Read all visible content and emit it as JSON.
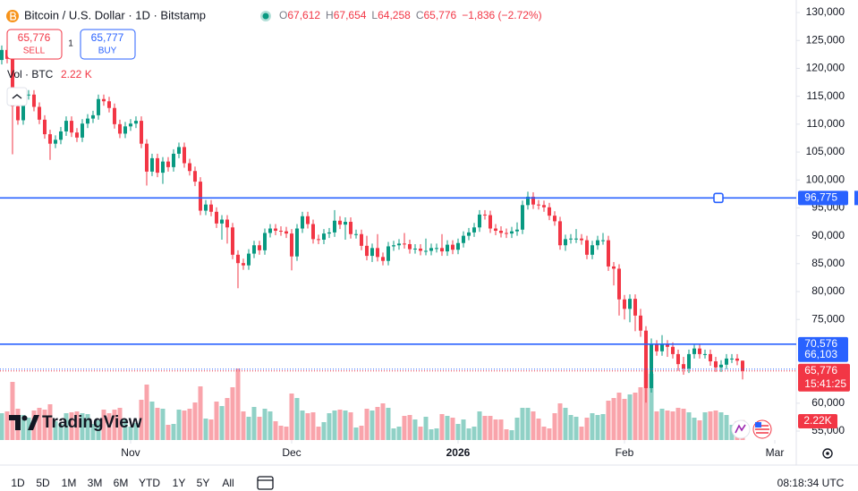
{
  "header": {
    "symbol": "Bitcoin / U.S. Dollar · 1D · Bitstamp",
    "ohlc": [
      {
        "key": "O",
        "value": "67,612"
      },
      {
        "key": "H",
        "value": "67,654"
      },
      {
        "key": "L",
        "value": "64,258"
      },
      {
        "key": "C",
        "value": "65,776"
      }
    ],
    "change": "−1,836 (−2.72%)"
  },
  "trade": {
    "sell_price": "65,776",
    "sell_label": "SELL",
    "quantity": "1",
    "buy_price": "65,777",
    "buy_label": "BUY"
  },
  "volume_legend": {
    "label": "Vol · BTC",
    "value": "2.22 K"
  },
  "branding": "TradingView",
  "footer": {
    "ranges": [
      "1D",
      "5D",
      "1M",
      "3M",
      "6M",
      "YTD",
      "1Y",
      "5Y",
      "All"
    ],
    "clock": "08:18:34 UTC"
  },
  "chart_data": {
    "type": "candlestick",
    "up_color": "#089981",
    "down_color": "#f23645",
    "open": [
      121500,
      123300,
      121700,
      113200,
      110700,
      115200,
      115300,
      113100,
      110800,
      108200,
      106500,
      107200,
      108700,
      110600,
      108500,
      107600,
      110100,
      111000,
      111600,
      114500,
      114100,
      112900,
      110000,
      108300,
      109600,
      110100,
      110600,
      106500,
      101500,
      103900,
      101300,
      103300,
      102300,
      104700,
      105900,
      103000,
      101600,
      99700,
      94500,
      95600,
      94300,
      92200,
      92900,
      91500,
      86600,
      85100,
      84700,
      86800,
      88300,
      87400,
      90500,
      91300,
      90900,
      90800,
      90400,
      86300,
      91300,
      93500,
      92100,
      89400,
      89300,
      90400,
      90600,
      92700,
      92000,
      92500,
      90300,
      90300,
      88200,
      86400,
      87800,
      86200,
      85500,
      88100,
      88300,
      88600,
      88500,
      87600,
      87700,
      87300,
      87300,
      87800,
      87800,
      87200,
      88400,
      87500,
      88700,
      90000,
      90600,
      91500,
      93800,
      93700,
      91300,
      90900,
      90500,
      90400,
      90800,
      91100,
      95500,
      97000,
      95600,
      95500,
      95100,
      93600,
      92600,
      88300,
      89400,
      89500,
      89500,
      89200,
      86600,
      88300,
      89200,
      89200,
      84500,
      84100,
      78600,
      76900,
      78700,
      75700,
      73000,
      62700,
      70500,
      69300,
      70500,
      70100,
      68800,
      67000,
      66200,
      68800,
      69800,
      68800,
      68800,
      67500,
      66400,
      66900,
      68000,
      68000,
      67612
    ],
    "high": [
      124100,
      124100,
      122500,
      114000,
      116000,
      116100,
      116100,
      113900,
      111600,
      109000,
      108000,
      109500,
      111400,
      111400,
      109300,
      110900,
      111800,
      112400,
      115300,
      115300,
      114900,
      113700,
      110800,
      110400,
      110900,
      111400,
      111400,
      107300,
      104700,
      104700,
      104100,
      104100,
      105500,
      106700,
      106700,
      103800,
      102400,
      100500,
      96400,
      96400,
      95100,
      93700,
      93700,
      92300,
      87400,
      85900,
      87600,
      89100,
      89100,
      91300,
      92100,
      92100,
      91700,
      91600,
      91200,
      92100,
      94300,
      94300,
      92900,
      90200,
      91200,
      91400,
      94600,
      93500,
      93300,
      93300,
      91100,
      91100,
      90000,
      88600,
      90300,
      87000,
      88900,
      89100,
      89400,
      90500,
      89300,
      88500,
      88500,
      89500,
      88600,
      88600,
      90300,
      89200,
      89200,
      89500,
      90800,
      91400,
      92300,
      94600,
      94600,
      94500,
      92100,
      91700,
      91300,
      91600,
      92400,
      96300,
      97900,
      97800,
      96400,
      96300,
      95900,
      94400,
      93400,
      90200,
      90300,
      91200,
      90300,
      90000,
      89100,
      90000,
      90500,
      90000,
      85300,
      84900,
      79400,
      79500,
      79500,
      76900,
      73800,
      71600,
      71300,
      72200,
      71300,
      70900,
      69600,
      68300,
      69600,
      70600,
      70600,
      69600,
      69600,
      68300,
      67700,
      68800,
      68800,
      68800,
      67654
    ],
    "low": [
      120700,
      120900,
      104600,
      109900,
      109900,
      114400,
      112300,
      110000,
      107400,
      103600,
      105700,
      106400,
      107900,
      107700,
      106800,
      106800,
      109300,
      110200,
      110800,
      113300,
      112100,
      109200,
      107500,
      107500,
      108800,
      109300,
      105700,
      99000,
      100700,
      100500,
      99300,
      101500,
      101500,
      103900,
      102200,
      100800,
      98900,
      93700,
      93700,
      93500,
      91400,
      89300,
      88600,
      85800,
      80600,
      83900,
      83900,
      86000,
      86600,
      86600,
      89700,
      90100,
      90000,
      89600,
      83800,
      85500,
      90500,
      91300,
      88600,
      88500,
      88500,
      89600,
      89800,
      91200,
      89300,
      89500,
      89500,
      87400,
      85600,
      85300,
      85400,
      84700,
      84700,
      87300,
      87500,
      87700,
      86800,
      86800,
      86500,
      86500,
      86500,
      87000,
      86400,
      86400,
      86700,
      86700,
      87900,
      89200,
      89800,
      90700,
      92900,
      90500,
      90100,
      89700,
      89600,
      89600,
      90000,
      90300,
      94700,
      94800,
      94700,
      94300,
      92800,
      91800,
      87500,
      87300,
      88600,
      88700,
      88400,
      85800,
      85800,
      87500,
      88400,
      83700,
      81100,
      75700,
      75000,
      74500,
      72900,
      71900,
      60100,
      61900,
      68500,
      68500,
      68300,
      68000,
      65800,
      65100,
      65400,
      68000,
      68000,
      68000,
      66700,
      65600,
      65600,
      66100,
      67200,
      66800,
      64258
    ],
    "close": [
      123300,
      121700,
      113200,
      110700,
      115200,
      115300,
      113100,
      110800,
      108200,
      106500,
      107200,
      108700,
      110600,
      108500,
      107600,
      110100,
      111000,
      111600,
      114500,
      114100,
      112900,
      110000,
      108300,
      109600,
      110100,
      110600,
      106500,
      101500,
      103900,
      101300,
      103300,
      102300,
      104700,
      105900,
      103000,
      101600,
      99700,
      94500,
      95600,
      94300,
      92200,
      92900,
      91500,
      86600,
      85100,
      84700,
      86800,
      88300,
      87400,
      90500,
      91300,
      90900,
      90800,
      90400,
      86300,
      91300,
      93500,
      92100,
      89400,
      89300,
      90400,
      90600,
      92700,
      92000,
      92500,
      90300,
      90300,
      88200,
      86400,
      87800,
      86200,
      85500,
      88100,
      88300,
      88600,
      88500,
      87600,
      87700,
      87300,
      87300,
      87800,
      87800,
      87200,
      88400,
      87500,
      88700,
      90000,
      90600,
      91500,
      93800,
      93700,
      91300,
      90900,
      90500,
      90400,
      90800,
      91100,
      95500,
      97000,
      95600,
      95500,
      95100,
      93600,
      92600,
      88300,
      89400,
      89500,
      89500,
      89200,
      86600,
      88300,
      89200,
      89200,
      84500,
      84100,
      78600,
      76900,
      78700,
      75700,
      73000,
      62700,
      70500,
      69300,
      70500,
      70100,
      68800,
      67000,
      66200,
      68800,
      69800,
      68800,
      68800,
      67500,
      66400,
      66900,
      68000,
      68000,
      67612,
      65776
    ],
    "volume": [
      3000,
      3200,
      6500,
      3500,
      2800,
      2500,
      3300,
      3600,
      3400,
      4000,
      2100,
      1800,
      3000,
      3100,
      3200,
      3000,
      2900,
      1800,
      2200,
      3400,
      3000,
      3400,
      3600,
      2300,
      1500,
      1900,
      4500,
      6200,
      4300,
      3600,
      3500,
      1700,
      1800,
      3400,
      3300,
      3500,
      4200,
      6000,
      2400,
      2300,
      4300,
      3800,
      4700,
      5900,
      8000,
      3200,
      2600,
      3700,
      2600,
      3500,
      3200,
      2100,
      1600,
      1500,
      5200,
      4700,
      3300,
      3000,
      3100,
      1500,
      2000,
      3000,
      3300,
      3400,
      3300,
      3100,
      1400,
      1600,
      3500,
      3300,
      3700,
      4100,
      3600,
      1300,
      1500,
      2700,
      2800,
      2300,
      1500,
      2600,
      1200,
      1300,
      2900,
      2700,
      2500,
      1800,
      2300,
      1300,
      1500,
      3200,
      2700,
      2700,
      2300,
      2300,
      1200,
      1100,
      2500,
      3600,
      3600,
      3200,
      2400,
      1500,
      1300,
      3000,
      4100,
      3600,
      2800,
      2600,
      1500,
      2500,
      3000,
      2800,
      2900,
      4400,
      4700,
      5300,
      4600,
      5100,
      5300,
      5900,
      8000,
      7400,
      3200,
      3500,
      3300,
      3200,
      3600,
      3500,
      3100,
      2500,
      2200,
      3100,
      3200,
      3300,
      3100,
      2800,
      1700,
      2100,
      2220
    ],
    "xlim": [
      -0.33,
      148
    ],
    "xticks": [
      {
        "value": 24,
        "label": "Nov"
      },
      {
        "value": 54,
        "label": "Dec"
      },
      {
        "value": 85,
        "label": "2026"
      },
      {
        "value": 116,
        "label": "Feb"
      },
      {
        "value": 144,
        "label": "Mar"
      }
    ],
    "ylim": [
      53400,
      132250
    ],
    "yticks": [
      {
        "value": 130000,
        "label": "130,000"
      },
      {
        "value": 125000,
        "label": "125,000"
      },
      {
        "value": 120000,
        "label": "120,000"
      },
      {
        "value": 115000,
        "label": "115,000"
      },
      {
        "value": 110000,
        "label": "110,000"
      },
      {
        "value": 105000,
        "label": "105,000"
      },
      {
        "value": 100000,
        "label": "100,000"
      },
      {
        "value": 95000,
        "label": "95,000"
      },
      {
        "value": 90000,
        "label": "90,000"
      },
      {
        "value": 85000,
        "label": "85,000"
      },
      {
        "value": 80000,
        "label": "80,000"
      },
      {
        "value": 75000,
        "label": "75,000"
      },
      {
        "value": 60000,
        "label": "60,000"
      },
      {
        "value": 55000,
        "label": "55,000"
      }
    ],
    "price_lines": [
      {
        "value": 96775,
        "label": "96,775",
        "color": "#2962ff",
        "style": "solid"
      },
      {
        "value": 70576,
        "label": "70,576",
        "color": "#2962ff",
        "style": "solid"
      },
      {
        "value": 66103,
        "label": "66,103",
        "color": "#2962ff",
        "style": "dotted"
      }
    ],
    "last_price": {
      "value": 65776,
      "label": "65,776",
      "countdown": "15:41:25",
      "color": "#f23645"
    },
    "volume_label": "2.22K"
  }
}
